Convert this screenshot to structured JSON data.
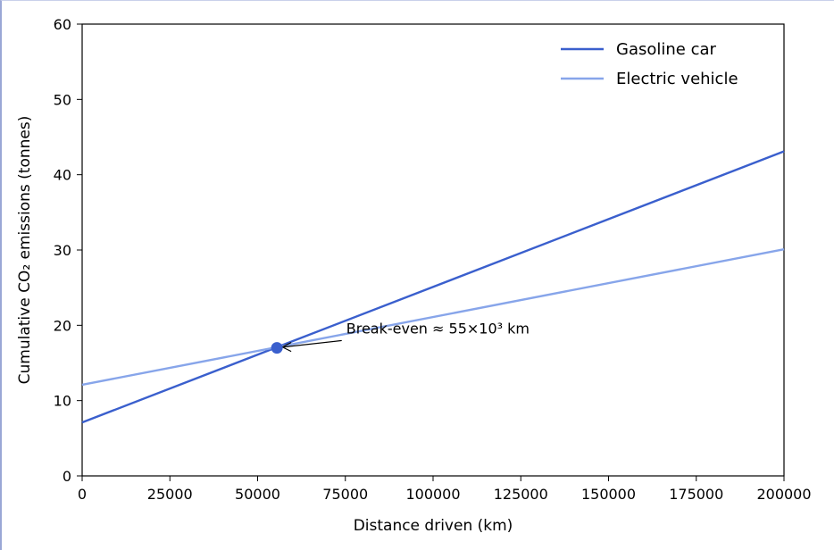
{
  "chart_data": {
    "type": "line",
    "xlabel": "Distance driven (km)",
    "ylabel": "Cumulative CO₂ emissions (tonnes)",
    "xlim": [
      0,
      200000
    ],
    "ylim": [
      0,
      60
    ],
    "xticks": [
      0,
      25000,
      50000,
      75000,
      100000,
      125000,
      150000,
      175000,
      200000
    ],
    "yticks": [
      0,
      10,
      20,
      30,
      40,
      50,
      60
    ],
    "x": [
      0,
      200000
    ],
    "series": [
      {
        "name": "Gasoline car",
        "values": [
          7.1,
          43.1
        ],
        "color": "#3a5fcd"
      },
      {
        "name": "Electric vehicle",
        "values": [
          12.1,
          30.1
        ],
        "color": "#87a5ea"
      }
    ],
    "legend_position": "top-right",
    "grid": false,
    "annotation": {
      "text": "Break-even ≈ 55×10³ km",
      "point": [
        55500,
        17.0
      ],
      "text_at": [
        75000,
        18.8
      ],
      "marker_color": "#3a5fcd"
    }
  }
}
